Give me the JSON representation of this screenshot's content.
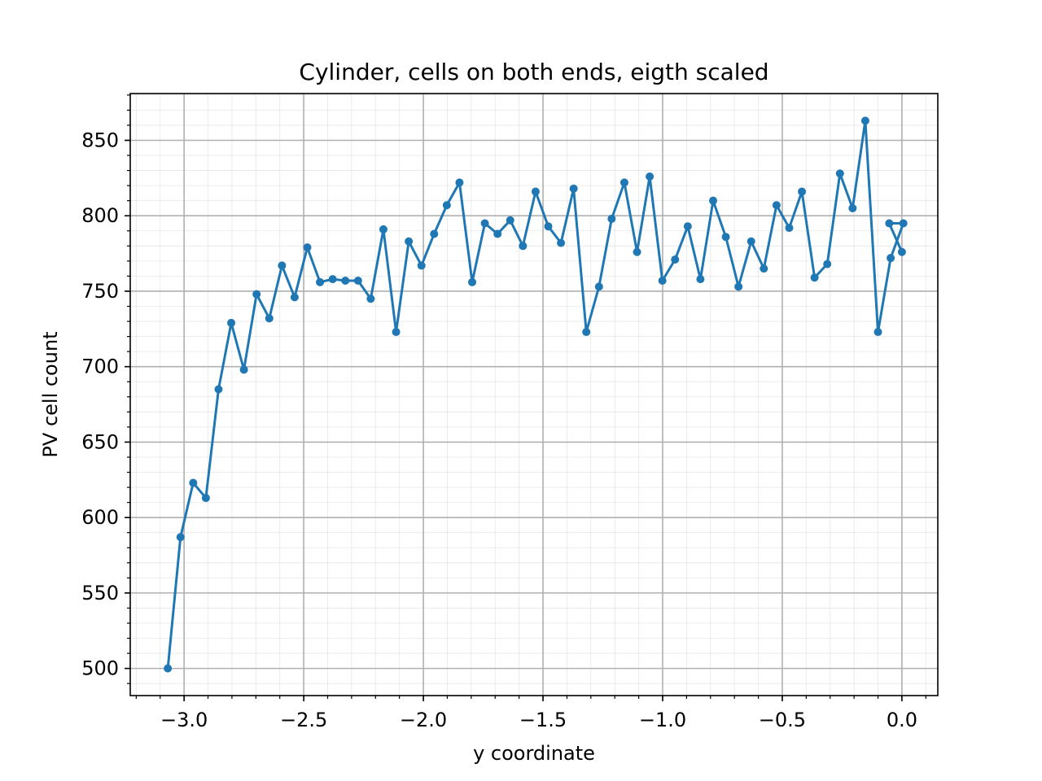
{
  "chart_data": {
    "type": "line",
    "title": "Cylinder, cells on both ends, eigth scaled",
    "xlabel": "y coordinate",
    "ylabel": "PV cell count",
    "xlim": [
      -3.225,
      0.15
    ],
    "ylim": [
      482,
      881
    ],
    "xticks": [
      -3.0,
      -2.5,
      -2.0,
      -1.5,
      -1.0,
      -0.5,
      0.0
    ],
    "xtick_labels": [
      "−3.0",
      "−2.5",
      "−2.0",
      "−1.5",
      "−1.0",
      "−0.5",
      "0.0"
    ],
    "yticks": [
      500,
      550,
      600,
      650,
      700,
      750,
      800,
      850
    ],
    "ytick_labels": [
      "500",
      "550",
      "600",
      "650",
      "700",
      "750",
      "800",
      "850"
    ],
    "grid": "major and minor",
    "line_color": "#1f77b4",
    "marker": "circle",
    "series": [
      {
        "x": [
          -3.068,
          -3.015,
          -2.962,
          -2.909,
          -2.856,
          -2.803,
          -2.75,
          -2.697,
          -2.644,
          -2.591,
          -2.538,
          -2.485,
          -2.432,
          -2.379,
          -2.326,
          -2.273,
          -2.22,
          -2.167,
          -2.114,
          -2.061,
          -2.008,
          -1.955,
          -1.902,
          -1.849,
          -1.796,
          -1.743,
          -1.69,
          -1.637,
          -1.584,
          -1.531,
          -1.478,
          -1.425,
          -1.372,
          -1.319,
          -1.266,
          -1.213,
          -1.16,
          -1.107,
          -1.054,
          -1.001,
          -0.948,
          -0.895,
          -0.842,
          -0.789,
          -0.736,
          -0.683,
          -0.63,
          -0.577,
          -0.524,
          -0.471,
          -0.418,
          -0.365,
          -0.312,
          -0.259,
          -0.206,
          -0.153,
          -0.1,
          -0.047,
          0.006,
          -0.053,
          0.0
        ],
        "y": [
          500,
          587,
          623,
          613,
          685,
          729,
          698,
          748,
          732,
          767,
          746,
          779,
          756,
          758,
          757,
          757,
          745,
          791,
          723,
          783,
          767,
          788,
          807,
          822,
          756,
          795,
          788,
          797,
          780,
          816,
          793,
          782,
          818,
          723,
          753,
          798,
          822,
          776,
          826,
          757,
          771,
          793,
          758,
          810,
          786,
          753,
          783,
          765,
          807,
          792,
          816,
          759,
          768,
          828,
          805,
          863,
          723,
          772,
          795,
          795,
          776
        ]
      }
    ]
  }
}
